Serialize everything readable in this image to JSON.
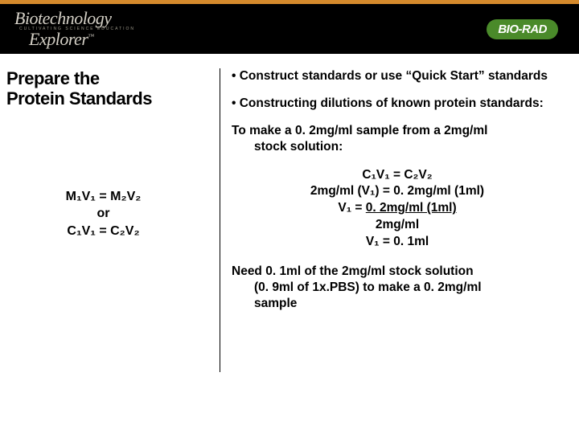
{
  "colors": {
    "header_orange": "#d58a2c",
    "black": "#000000",
    "brand_green": "#4a8a2a",
    "text": "#000000"
  },
  "header": {
    "logo_line1": "Biotechnology",
    "logo_tagline": "CULTIVATING  SCIENCE EDUCATION",
    "logo_line2": "Explorer",
    "trademark": "™",
    "biorad": "BIO-RAD"
  },
  "left": {
    "title_line1": "Prepare the",
    "title_line2": "Protein Standards",
    "eq1": "M₁V₁ = M₂V₂",
    "eq_or": "or",
    "eq2": "C₁V₁ = C₂V₂"
  },
  "right": {
    "bullet1": "• Construct standards or use “Quick Start” standards",
    "bullet2": "• Constructing dilutions of known protein standards:",
    "example_head_a": "To make a 0. 2mg/ml sample from a 2mg/ml",
    "example_head_b": "stock solution:",
    "calc1": "C₁V₁ = C₂V₂",
    "calc2": "2mg/ml (V₁) = 0. 2mg/ml (1ml)",
    "calc3_pre": "V₁ = ",
    "calc3_u": "0. 2mg/ml (1ml)",
    "calc4": "2mg/ml",
    "calc5": "V₁ =  0. 1ml",
    "conclusion_a": "Need 0. 1ml of the 2mg/ml stock solution",
    "conclusion_b": "(0. 9ml of 1x.PBS) to make a 0. 2mg/ml",
    "conclusion_c": "sample"
  }
}
